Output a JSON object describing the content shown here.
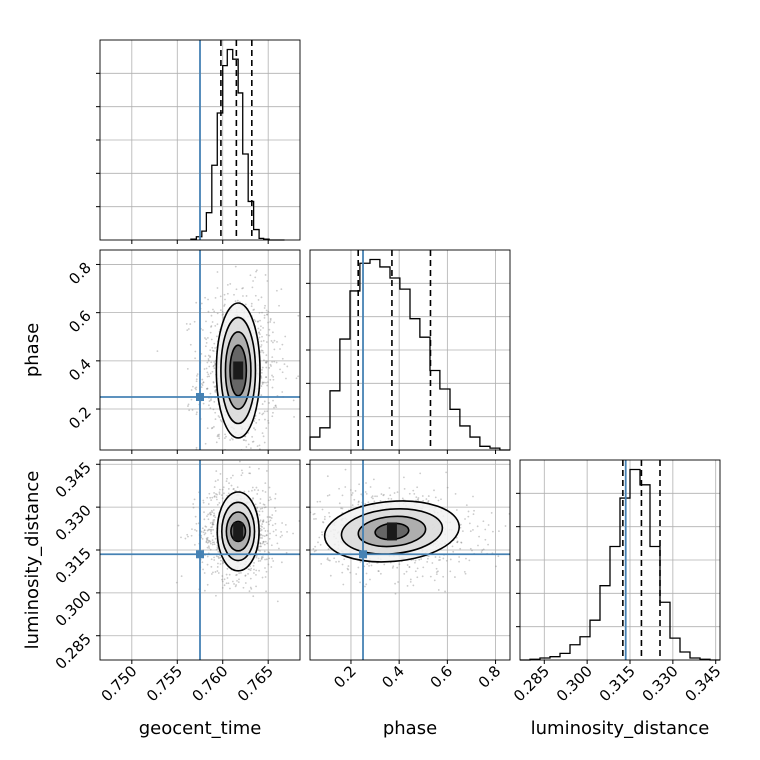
{
  "chart_data": {
    "type": "scatter",
    "subtype": "corner-plot",
    "grid": true,
    "truth_color": "#4682b4",
    "parameters": [
      {
        "key": "geocent_time",
        "label": "geocent_time",
        "range": [
          0.7465,
          0.7685
        ],
        "ticks": [
          {
            "v": 0.75,
            "label": "0.750"
          },
          {
            "v": 0.755,
            "label": "0.755"
          },
          {
            "v": 0.76,
            "label": "0.760"
          },
          {
            "v": 0.765,
            "label": "0.765"
          }
        ],
        "truth": 0.7575,
        "quantiles": [
          0.7598,
          0.7615,
          0.7632
        ],
        "hist": {
          "bins": [
            0.7565,
            0.7571,
            0.7577,
            0.7582,
            0.7588,
            0.7594,
            0.76,
            0.7605,
            0.7611,
            0.7617,
            0.7622,
            0.7628,
            0.7634,
            0.764,
            0.7645,
            0.7651,
            0.7657,
            0.7662,
            0.7668
          ],
          "counts": [
            1,
            4,
            11,
            34,
            93,
            158,
            217,
            237,
            225,
            183,
            107,
            48,
            13,
            2,
            1,
            0,
            0,
            0
          ]
        }
      },
      {
        "key": "phase",
        "label": "phase",
        "range": [
          0.03,
          0.86
        ],
        "ticks": [
          {
            "v": 0.2,
            "label": "0.2"
          },
          {
            "v": 0.4,
            "label": "0.4"
          },
          {
            "v": 0.6,
            "label": "0.6"
          },
          {
            "v": 0.8,
            "label": "0.8"
          }
        ],
        "truth": 0.25,
        "quantiles": [
          0.23,
          0.37,
          0.53
        ],
        "hist": {
          "bins": [
            0.03,
            0.071,
            0.113,
            0.154,
            0.196,
            0.237,
            0.279,
            0.32,
            0.362,
            0.403,
            0.445,
            0.486,
            0.528,
            0.569,
            0.611,
            0.652,
            0.694,
            0.735,
            0.777,
            0.818,
            0.86
          ],
          "counts": [
            7,
            12,
            32,
            60,
            86,
            101,
            103,
            99,
            93,
            87,
            71,
            61,
            43,
            33,
            22,
            13,
            7,
            2,
            1,
            0
          ]
        }
      },
      {
        "key": "luminosity_distance",
        "label": "luminosity_distance",
        "range": [
          0.2765,
          0.3465
        ],
        "ticks": [
          {
            "v": 0.285,
            "label": "0.285"
          },
          {
            "v": 0.3,
            "label": "0.300"
          },
          {
            "v": 0.315,
            "label": "0.315"
          },
          {
            "v": 0.33,
            "label": "0.330"
          },
          {
            "v": 0.345,
            "label": "0.345"
          }
        ],
        "truth": 0.3135,
        "quantiles": [
          0.3125,
          0.319,
          0.3255
        ],
        "hist": {
          "bins": [
            0.2765,
            0.28,
            0.2835,
            0.287,
            0.2905,
            0.294,
            0.2975,
            0.301,
            0.3045,
            0.308,
            0.3115,
            0.315,
            0.3185,
            0.322,
            0.3255,
            0.329,
            0.3325,
            0.336,
            0.3395,
            0.343,
            0.3465
          ],
          "counts": [
            0,
            1,
            3,
            5,
            10,
            23,
            35,
            60,
            112,
            171,
            244,
            287,
            264,
            171,
            87,
            33,
            12,
            3,
            1,
            0
          ]
        }
      }
    ],
    "contours": [
      {
        "row": 1,
        "col": 0,
        "center": [
          0.7617,
          0.36
        ],
        "levels": [
          {
            "sx": 0.0009,
            "sy": 0.105
          },
          {
            "sx": 0.0014,
            "sy": 0.16
          },
          {
            "sx": 0.0019,
            "sy": 0.22
          },
          {
            "sx": 0.0024,
            "sy": 0.28
          }
        ],
        "rotation": 0,
        "scatter_spread": [
          0.0022,
          0.17
        ]
      },
      {
        "row": 2,
        "col": 0,
        "center": [
          0.7617,
          0.3215
        ],
        "levels": [
          {
            "sx": 0.0008,
            "sy": 0.0035
          },
          {
            "sx": 0.0013,
            "sy": 0.0068
          },
          {
            "sx": 0.0018,
            "sy": 0.0102
          },
          {
            "sx": 0.0023,
            "sy": 0.0138
          }
        ],
        "rotation": 0,
        "scatter_spread": [
          0.0021,
          0.0085
        ]
      },
      {
        "row": 2,
        "col": 1,
        "center": [
          0.37,
          0.3215
        ],
        "levels": [
          {
            "sx": 0.07,
            "sy": 0.0028
          },
          {
            "sx": 0.14,
            "sy": 0.0052
          },
          {
            "sx": 0.21,
            "sy": 0.0078
          },
          {
            "sx": 0.28,
            "sy": 0.0105
          }
        ],
        "rotation": -0.12,
        "scatter_spread": [
          0.17,
          0.0075
        ]
      }
    ]
  }
}
